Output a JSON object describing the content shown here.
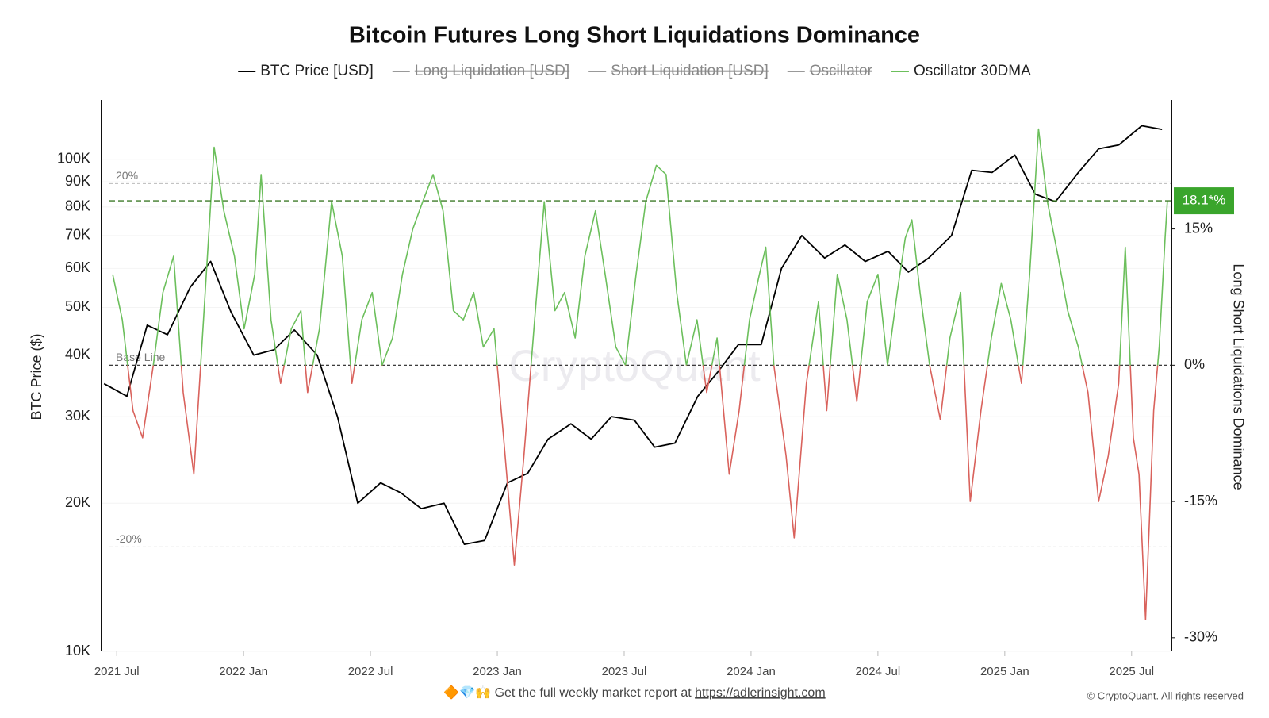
{
  "chart_data": {
    "type": "line",
    "title": "Bitcoin Futures Long Short Liquidations Dominance",
    "y_label": "BTC Price ($)",
    "y2_label": "Long Short Liquidations Dominance",
    "watermark": "CryptoQuant",
    "log_y": true,
    "xlim": [
      2021.44,
      2025.657
    ],
    "xticks": [
      {
        "value": 2021.5,
        "label": "2021 Jul"
      },
      {
        "value": 2022.0,
        "label": "2022 Jan"
      },
      {
        "value": 2022.5,
        "label": "2022 Jul"
      },
      {
        "value": 2023.0,
        "label": "2023 Jan"
      },
      {
        "value": 2023.5,
        "label": "2023 Jul"
      },
      {
        "value": 2024.0,
        "label": "2024 Jan"
      },
      {
        "value": 2024.5,
        "label": "2024 Jul"
      },
      {
        "value": 2025.0,
        "label": "2025 Jan"
      },
      {
        "value": 2025.5,
        "label": "2025 Jul"
      }
    ],
    "ylim": [
      10000,
      132000
    ],
    "yticks": [
      {
        "value": 10000,
        "label": "10K"
      },
      {
        "value": 20000,
        "label": "20K"
      },
      {
        "value": 30000,
        "label": "30K"
      },
      {
        "value": 40000,
        "label": "40K"
      },
      {
        "value": 50000,
        "label": "50K"
      },
      {
        "value": 60000,
        "label": "60K"
      },
      {
        "value": 70000,
        "label": "70K"
      },
      {
        "value": 80000,
        "label": "80K"
      },
      {
        "value": 90000,
        "label": "90K"
      },
      {
        "value": 100000,
        "label": "100K"
      }
    ],
    "y2lim": [
      -31.5,
      29.2
    ],
    "y2ticks": [
      {
        "value": -30,
        "label": "-30%"
      },
      {
        "value": -15,
        "label": "-15%"
      },
      {
        "value": 0,
        "label": "0%"
      },
      {
        "value": 15,
        "label": "15%"
      }
    ],
    "reference_lines": [
      {
        "value": 20,
        "label": "20%"
      },
      {
        "value": 0,
        "label": "Base Line"
      },
      {
        "value": -20,
        "label": "-20%"
      }
    ],
    "current_value": {
      "value": 18.1,
      "label": "18.1*%",
      "color": "#3aa52c"
    },
    "series": [
      {
        "name": "BTC Price [USD]",
        "color": "#000000",
        "x": [
          2021.45,
          2021.54,
          2021.62,
          2021.7,
          2021.79,
          2021.87,
          2021.95,
          2022.04,
          2022.12,
          2022.2,
          2022.29,
          2022.37,
          2022.45,
          2022.54,
          2022.62,
          2022.7,
          2022.79,
          2022.87,
          2022.95,
          2023.04,
          2023.12,
          2023.2,
          2023.29,
          2023.37,
          2023.45,
          2023.54,
          2023.62,
          2023.7,
          2023.79,
          2023.87,
          2023.95,
          2024.04,
          2024.12,
          2024.2,
          2024.29,
          2024.37,
          2024.45,
          2024.54,
          2024.62,
          2024.7,
          2024.79,
          2024.87,
          2024.95,
          2025.04,
          2025.12,
          2025.2,
          2025.29,
          2025.37,
          2025.45,
          2025.54,
          2025.62
        ],
        "values": [
          35000,
          33000,
          46000,
          44000,
          55000,
          62000,
          49000,
          40000,
          41000,
          45000,
          40000,
          30000,
          20000,
          22000,
          21000,
          19500,
          20000,
          16500,
          16800,
          22000,
          23000,
          27000,
          29000,
          27000,
          30000,
          29500,
          26000,
          26500,
          33000,
          37000,
          42000,
          42000,
          60000,
          70000,
          63000,
          67000,
          62000,
          65000,
          59000,
          63000,
          70000,
          95000,
          94000,
          102000,
          85000,
          82000,
          94000,
          105000,
          107000,
          117000,
          115000
        ]
      },
      {
        "name": "Long Liquidation [USD]",
        "color": "#888888",
        "hidden": true
      },
      {
        "name": "Short Liquidation [USD]",
        "color": "#888888",
        "hidden": true
      },
      {
        "name": "Oscillator",
        "color": "#888888",
        "hidden": true
      },
      {
        "name": "Oscillator 30DMA",
        "color": "#6cbf5c",
        "negative_color": "#d9625c",
        "axis": "y2",
        "x": [
          2021.484,
          2021.522,
          2021.564,
          2021.602,
          2021.644,
          2021.682,
          2021.724,
          2021.762,
          2021.804,
          2021.842,
          2021.884,
          2021.922,
          2021.964,
          2022.002,
          2022.044,
          2022.069,
          2022.108,
          2022.146,
          2022.188,
          2022.226,
          2022.252,
          2022.299,
          2022.347,
          2022.389,
          2022.427,
          2022.466,
          2022.507,
          2022.546,
          2022.587,
          2022.626,
          2022.667,
          2022.706,
          2022.747,
          2022.786,
          2022.827,
          2022.866,
          2022.907,
          2022.945,
          2022.987,
          2023.025,
          2023.067,
          2023.105,
          2023.147,
          2023.185,
          2023.227,
          2023.265,
          2023.307,
          2023.345,
          2023.387,
          2023.425,
          2023.467,
          2023.505,
          2023.547,
          2023.585,
          2023.627,
          2023.665,
          2023.707,
          2023.745,
          2023.787,
          2023.825,
          2023.866,
          2023.914,
          2023.953,
          2023.994,
          2024.033,
          2024.058,
          2024.09,
          2024.138,
          2024.17,
          2024.218,
          2024.266,
          2024.298,
          2024.34,
          2024.378,
          2024.417,
          2024.458,
          2024.5,
          2024.538,
          2024.576,
          2024.608,
          2024.634,
          2024.666,
          2024.704,
          2024.746,
          2024.784,
          2024.826,
          2024.864,
          2024.906,
          2024.947,
          2024.986,
          2025.024,
          2025.066,
          2025.098,
          2025.133,
          2025.168,
          2025.21,
          2025.248,
          2025.29,
          2025.328,
          2025.37,
          2025.408,
          2025.449,
          2025.475,
          2025.507,
          2025.529,
          2025.555,
          2025.587,
          2025.609,
          2025.632,
          2025.641
        ],
        "values": [
          10,
          5,
          -5,
          -8,
          0,
          8,
          12,
          -3,
          -12,
          5,
          24,
          17,
          12,
          4,
          10,
          21,
          5,
          -2,
          4,
          6,
          -3,
          4,
          18,
          12,
          -2,
          5,
          8,
          0,
          3,
          10,
          15,
          18,
          21,
          17,
          6,
          5,
          8,
          2,
          4,
          -8,
          -22,
          -10,
          5,
          18,
          6,
          8,
          3,
          12,
          17,
          10,
          2,
          0,
          10,
          18,
          22,
          21,
          8,
          0,
          5,
          -3,
          3,
          -12,
          -5,
          5,
          10,
          13,
          0,
          -10,
          -19,
          -2,
          7,
          -5,
          10,
          5,
          -4,
          7,
          10,
          0,
          8,
          14,
          16,
          8,
          0,
          -6,
          3,
          8,
          -15,
          -5,
          3,
          9,
          5,
          -2,
          10,
          26,
          18,
          12,
          6,
          2,
          -3,
          -15,
          -10,
          -2,
          13,
          -8,
          -12,
          -28,
          -5,
          2,
          14,
          18.1
        ]
      }
    ],
    "footer": {
      "emoji": "🔶💎🙌",
      "text": "Get the full weekly market report at",
      "link": "https://adlerinsight.com",
      "copyright": "© CryptoQuant. All rights reserved"
    }
  }
}
